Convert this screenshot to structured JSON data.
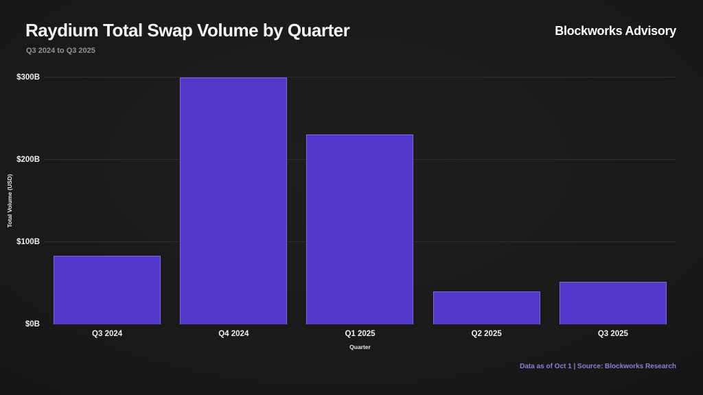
{
  "header": {
    "title": "Raydium Total Swap Volume by Quarter",
    "subtitle": "Q3 2024 to Q3 2025",
    "brand": "Blockworks Advisory"
  },
  "chart_data": {
    "type": "bar",
    "title": "Raydium Total Swap Volume by Quarter",
    "subtitle": "Q3 2024 to Q3 2025",
    "categories": [
      "Q3 2024",
      "Q4 2024",
      "Q1 2025",
      "Q2 2025",
      "Q3 2025"
    ],
    "values": [
      83,
      300,
      231,
      40,
      52
    ],
    "unit": "billions USD",
    "xlabel": "Quarter",
    "ylabel": "Total Volume (USD)",
    "ylim": [
      0,
      300
    ],
    "yticks": [
      {
        "value": 0,
        "label": "$0B"
      },
      {
        "value": 100,
        "label": "$100B"
      },
      {
        "value": 200,
        "label": "$200B"
      },
      {
        "value": 300,
        "label": "$300B"
      }
    ],
    "grid": "horizontal",
    "legend": "none",
    "bar_color": "#5438cb"
  },
  "footer": {
    "note": "Data as of Oct 1 | Source: Blockworks Research"
  },
  "colors": {
    "background": "#1a1a1a",
    "bar": "#5438cb",
    "title_text": "#f5f5f5",
    "subtitle_text": "#949494",
    "tick_text": "#f0f0f0",
    "grid_line": "#2d2d2d",
    "footer_text": "#8a80d6"
  }
}
